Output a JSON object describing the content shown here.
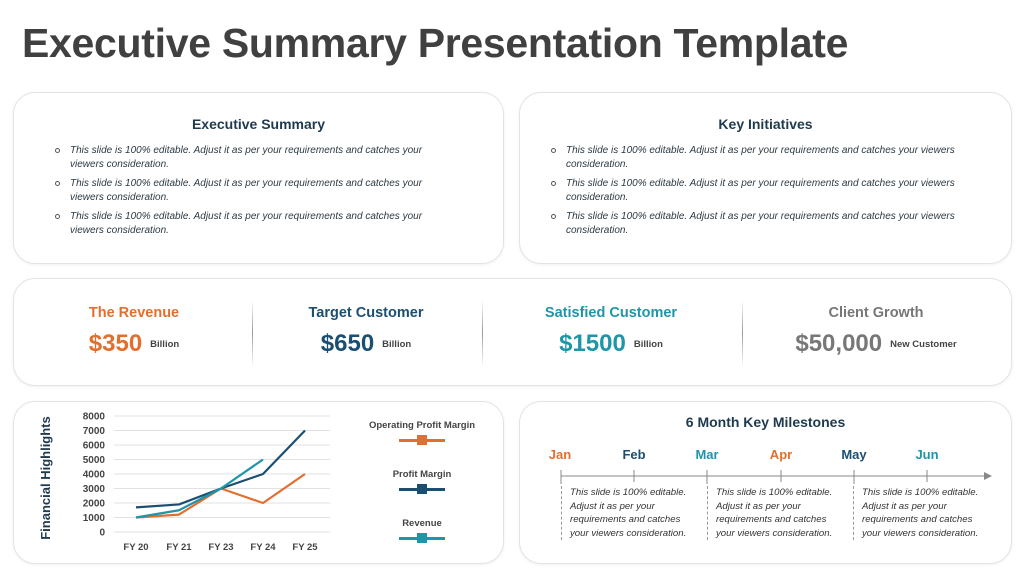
{
  "page": {
    "title": "Executive Summary Presentation Template"
  },
  "executive_summary": {
    "title": "Executive Summary",
    "bullets": [
      "This slide is 100% editable. Adjust it as per your requirements and catches your viewers consideration.",
      " This slide is 100% editable. Adjust it as per your requirements and catches your viewers consideration.",
      " This slide is 100% editable. Adjust it as per your requirements and catches your viewers consideration."
    ]
  },
  "key_initiatives": {
    "title": "Key Initiatives",
    "bullets": [
      "This slide is 100% editable. Adjust it as per your requirements and catches your viewers consideration.",
      " This slide is 100% editable. Adjust it as per your requirements and catches your viewers consideration.",
      " This slide is 100% editable. Adjust it as per your requirements and catches your viewers consideration."
    ]
  },
  "kpis": [
    {
      "label": "The Revenue",
      "value": "$350",
      "unit": "Billion",
      "color": "#e36f2e"
    },
    {
      "label": "Target Customer",
      "value": "$650",
      "unit": "Billion",
      "color": "#1b4f72"
    },
    {
      "label": "Satisfied Customer",
      "value": "$1500",
      "unit": "Billion",
      "color": "#1e96aa"
    },
    {
      "label": "Client Growth",
      "value": "$50,000",
      "unit": "New Customer",
      "color": "#777777"
    }
  ],
  "colors": {
    "orange": "#e36f2e",
    "navy": "#1b4f72",
    "teal": "#1e96aa",
    "gray": "#777777"
  },
  "chart_data": {
    "type": "line",
    "title": "Financial Highlights",
    "xlabel": "",
    "ylabel": "Financial Highlights",
    "categories": [
      "FY 20",
      "FY 21",
      "FY 23",
      "FY 24",
      "FY 25"
    ],
    "yticks": [
      "0",
      "1000",
      "2000",
      "3000",
      "4000",
      "5000",
      "6000",
      "7000",
      "8000"
    ],
    "ylim": [
      0,
      8000
    ],
    "grid": true,
    "legend_position": "right",
    "series": [
      {
        "name": "Operating Profit Margin",
        "color": "#e36f2e",
        "values": [
          1000,
          1200,
          3000,
          2000,
          4000
        ]
      },
      {
        "name": "Profit Margin",
        "color": "#1b4f72",
        "values": [
          1700,
          1900,
          3000,
          4000,
          7000
        ]
      },
      {
        "name": "Revenue",
        "color": "#1e96aa",
        "values": [
          1000,
          1500,
          3000,
          5000,
          null
        ]
      }
    ]
  },
  "milestones": {
    "title": "6 Month Key Milestones",
    "months": [
      {
        "label": "Jan",
        "color": "#e36f2e"
      },
      {
        "label": "Feb",
        "color": "#1b4f72"
      },
      {
        "label": "Mar",
        "color": "#1e96aa"
      },
      {
        "label": "Apr",
        "color": "#e36f2e"
      },
      {
        "label": "May",
        "color": "#1b4f72"
      },
      {
        "label": "Jun",
        "color": "#1e96aa"
      }
    ],
    "notes": [
      "This slide is 100% editable. Adjust  it as per your requirements and catches your viewers consideration.",
      "This slide is 100% editable. Adjust  it as per your requirements and catches your viewers consideration.",
      "This slide is 100% editable. Adjust  it as per your requirements and catches your viewers consideration."
    ]
  }
}
